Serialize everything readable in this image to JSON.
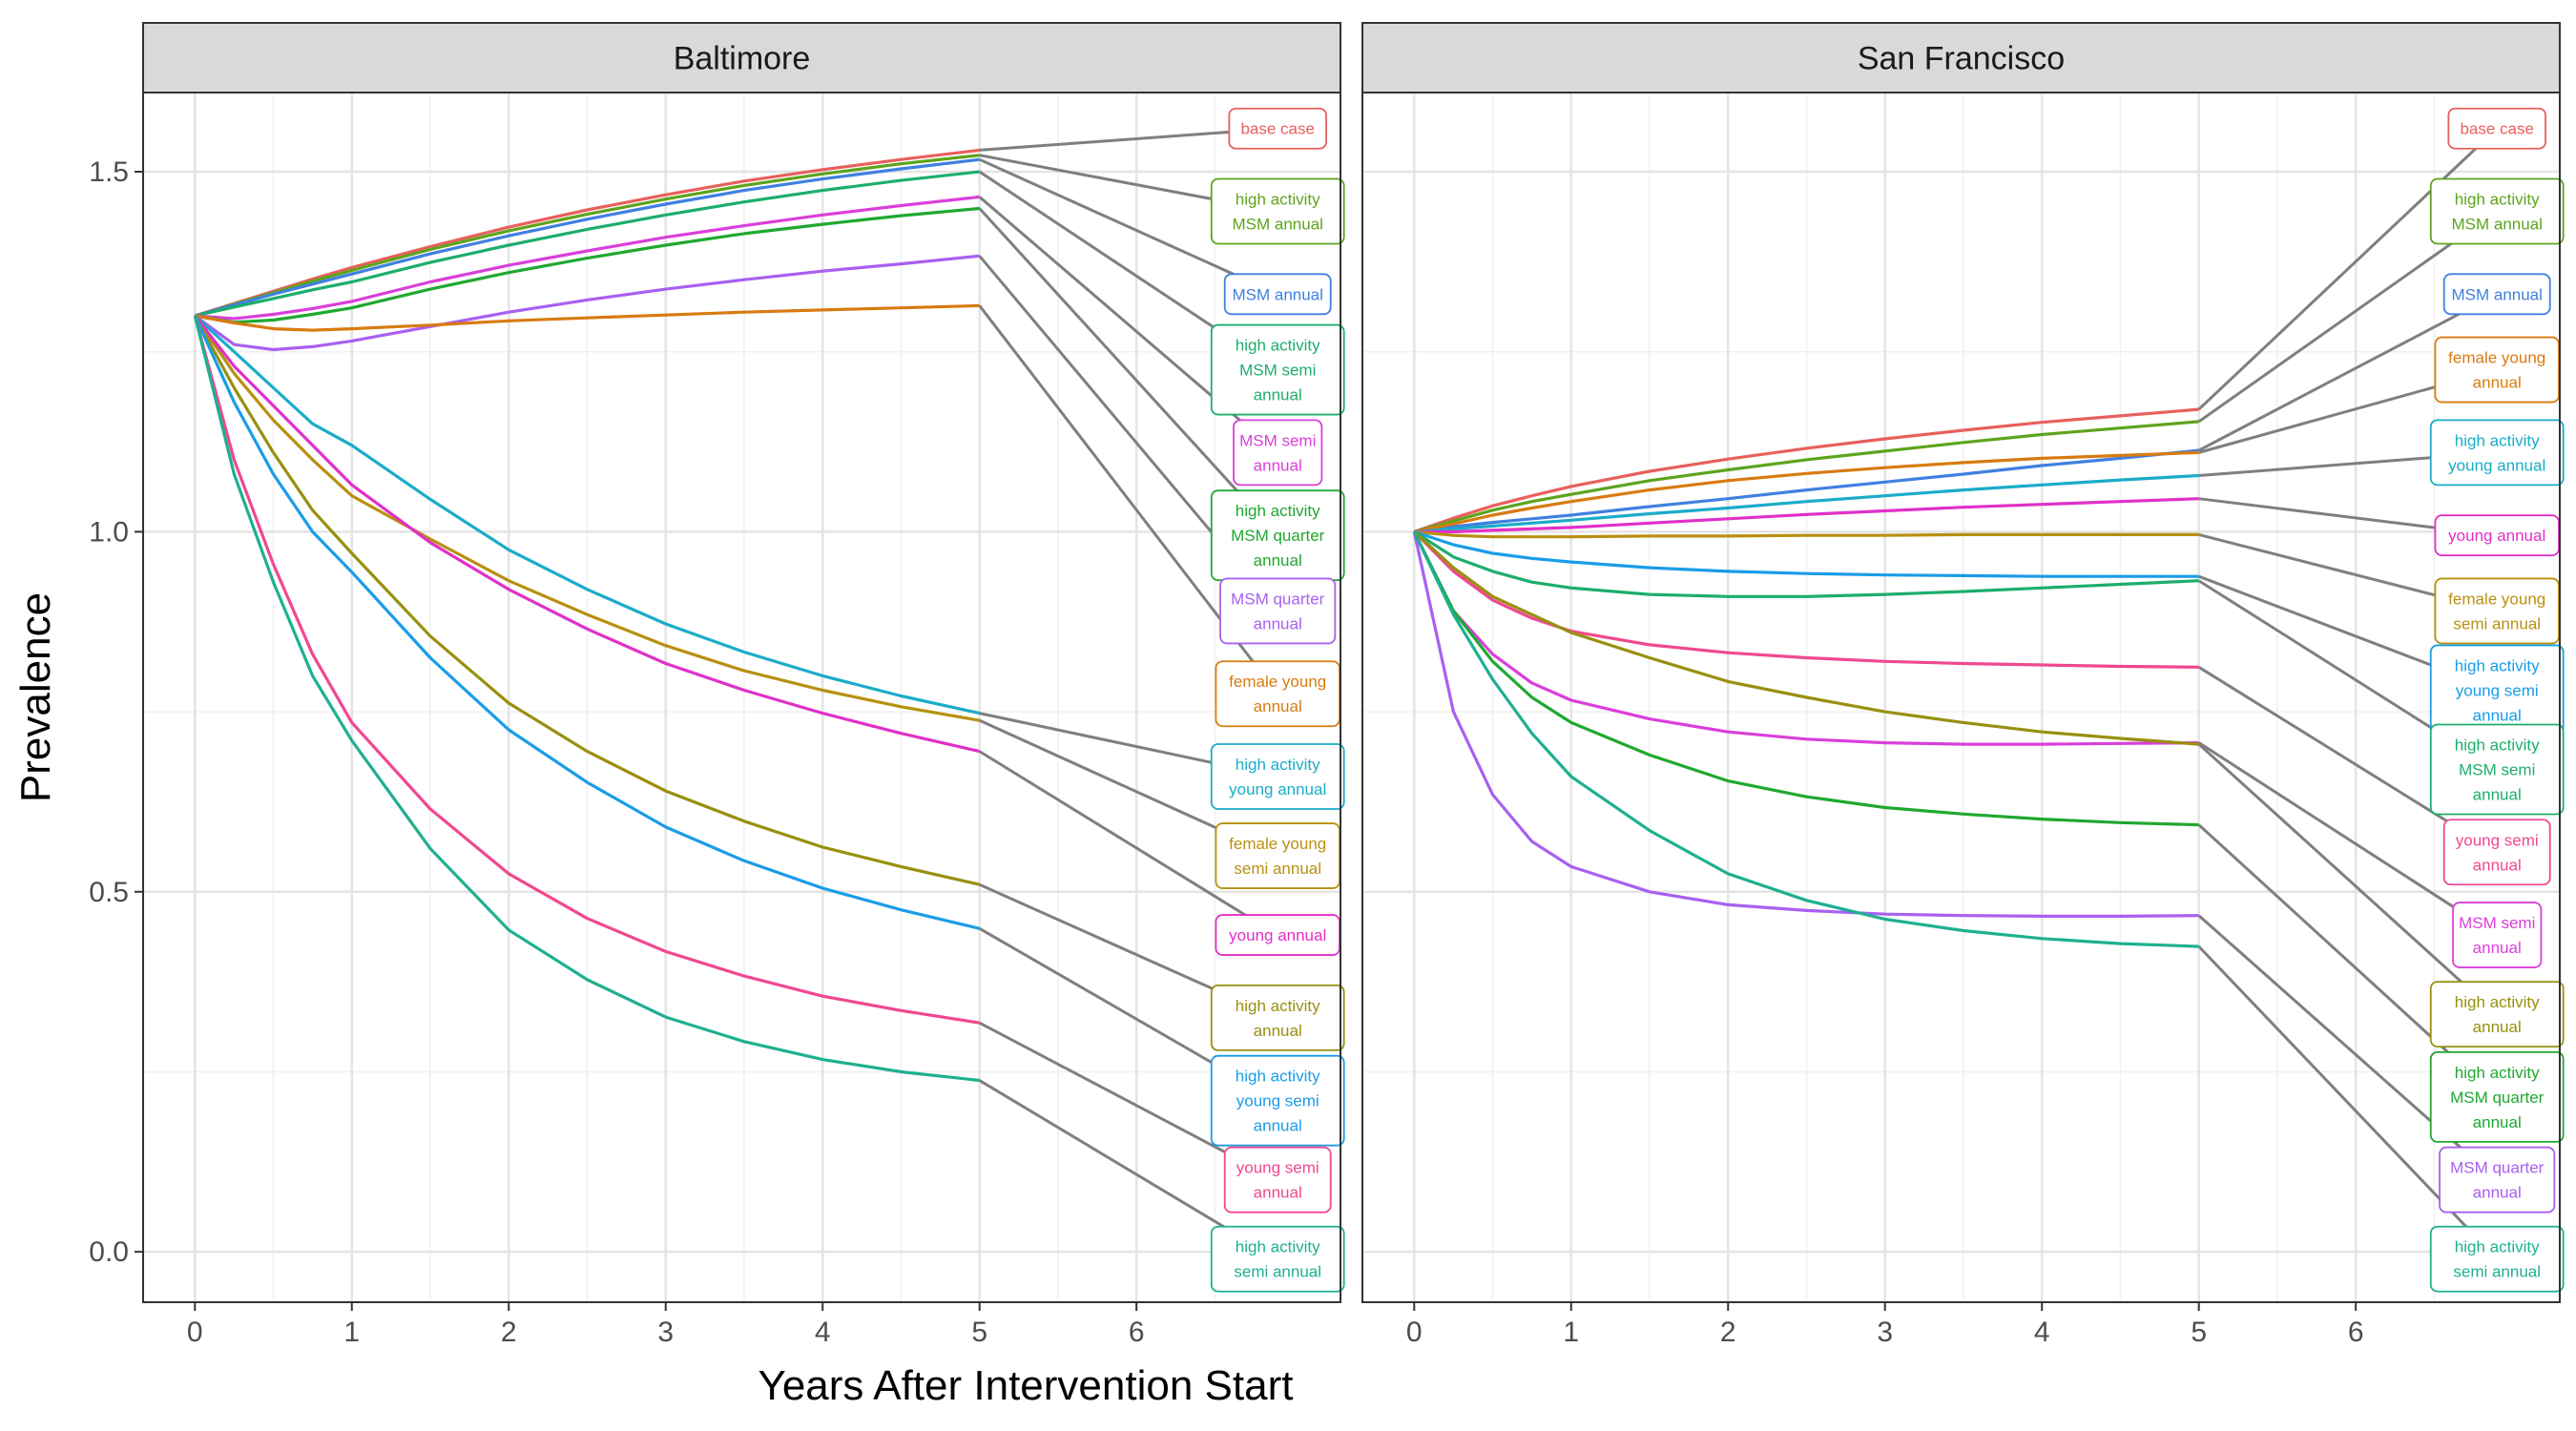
{
  "chart_data": {
    "type": "line",
    "xlabel": "Years After Intervention Start",
    "ylabel": "Prevalence",
    "xlim": [
      -0.33,
      7.3
    ],
    "ylim": [
      -0.07,
      1.61
    ],
    "x_ticks": [
      0,
      1,
      2,
      3,
      4,
      5,
      6
    ],
    "y_ticks": [
      0.0,
      0.5,
      1.0,
      1.5
    ],
    "y_tick_labels": [
      "0.0",
      "0.5",
      "1.0",
      "1.5"
    ],
    "grid": true,
    "x": [
      0,
      0.25,
      0.5,
      0.75,
      1,
      1.5,
      2,
      2.5,
      3,
      3.5,
      4,
      4.5,
      5
    ],
    "panels": [
      {
        "name": "Baltimore",
        "series": [
          {
            "name": "base case",
            "color": "#E8605C",
            "label_y": 1.56,
            "values": [
              1.3,
              1.317,
              1.334,
              1.351,
              1.367,
              1.396,
              1.423,
              1.447,
              1.468,
              1.487,
              1.503,
              1.517,
              1.53
            ]
          },
          {
            "name": "high activity MSM annual",
            "color": "#5DA41D",
            "label_y": 1.445,
            "values": [
              1.3,
              1.316,
              1.332,
              1.348,
              1.363,
              1.392,
              1.418,
              1.441,
              1.462,
              1.481,
              1.497,
              1.511,
              1.523
            ]
          },
          {
            "name": "MSM annual",
            "color": "#4080E0",
            "label_y": 1.33,
            "values": [
              1.3,
              1.315,
              1.33,
              1.344,
              1.358,
              1.386,
              1.411,
              1.434,
              1.455,
              1.474,
              1.49,
              1.504,
              1.517
            ]
          },
          {
            "name": "high activity MSM semi annual",
            "color": "#1CAE6C",
            "label_y": 1.225,
            "values": [
              1.3,
              1.312,
              1.324,
              1.336,
              1.347,
              1.374,
              1.398,
              1.42,
              1.44,
              1.458,
              1.474,
              1.488,
              1.5
            ]
          },
          {
            "name": "MSM semi annual",
            "color": "#DA3FDA",
            "label_y": 1.11,
            "values": [
              1.3,
              1.296,
              1.302,
              1.31,
              1.32,
              1.347,
              1.37,
              1.39,
              1.409,
              1.425,
              1.44,
              1.453,
              1.465
            ]
          },
          {
            "name": "high activity MSM quarter annual",
            "color": "#20A830",
            "label_y": 0.995,
            "values": [
              1.3,
              1.291,
              1.294,
              1.302,
              1.311,
              1.337,
              1.36,
              1.38,
              1.398,
              1.414,
              1.427,
              1.439,
              1.449
            ]
          },
          {
            "name": "MSM quarter annual",
            "color": "#A860F0",
            "label_y": 0.89,
            "values": [
              1.3,
              1.26,
              1.253,
              1.257,
              1.265,
              1.285,
              1.305,
              1.322,
              1.337,
              1.35,
              1.362,
              1.372,
              1.383
            ]
          },
          {
            "name": "female young annual",
            "color": "#D87B10",
            "label_y": 0.775,
            "values": [
              1.3,
              1.29,
              1.282,
              1.28,
              1.282,
              1.287,
              1.293,
              1.297,
              1.301,
              1.305,
              1.308,
              1.311,
              1.314
            ]
          },
          {
            "name": "high activity young annual",
            "color": "#1AACC8",
            "label_y": 0.66,
            "values": [
              1.3,
              1.25,
              1.2,
              1.15,
              1.12,
              1.045,
              0.975,
              0.92,
              0.872,
              0.833,
              0.8,
              0.772,
              0.748
            ]
          },
          {
            "name": "female young semi annual",
            "color": "#B89010",
            "label_y": 0.55,
            "values": [
              1.3,
              1.22,
              1.155,
              1.1,
              1.05,
              0.99,
              0.932,
              0.885,
              0.842,
              0.807,
              0.78,
              0.757,
              0.738
            ]
          },
          {
            "name": "young annual",
            "color": "#E030C8",
            "label_y": 0.44,
            "values": [
              1.3,
              1.23,
              1.175,
              1.12,
              1.065,
              0.985,
              0.92,
              0.865,
              0.817,
              0.78,
              0.748,
              0.72,
              0.695
            ]
          },
          {
            "name": "high activity annual",
            "color": "#989010",
            "label_y": 0.325,
            "values": [
              1.3,
              1.2,
              1.11,
              1.03,
              0.97,
              0.855,
              0.762,
              0.695,
              0.64,
              0.598,
              0.562,
              0.535,
              0.51
            ]
          },
          {
            "name": "high activity young semi annual",
            "color": "#1A9CE8",
            "label_y": 0.21,
            "values": [
              1.3,
              1.18,
              1.08,
              1.0,
              0.944,
              0.825,
              0.725,
              0.652,
              0.59,
              0.543,
              0.505,
              0.475,
              0.449
            ]
          },
          {
            "name": "young semi annual",
            "color": "#F04890",
            "label_y": 0.1,
            "values": [
              1.3,
              1.1,
              0.955,
              0.83,
              0.735,
              0.615,
              0.525,
              0.463,
              0.417,
              0.383,
              0.355,
              0.335,
              0.318
            ]
          },
          {
            "name": "high activity semi annual",
            "color": "#1EB090",
            "label_y": -0.01,
            "values": [
              1.3,
              1.08,
              0.93,
              0.8,
              0.71,
              0.56,
              0.447,
              0.378,
              0.326,
              0.292,
              0.267,
              0.25,
              0.238
            ]
          }
        ]
      },
      {
        "name": "San Francisco",
        "series": [
          {
            "name": "base case",
            "color": "#E8605C",
            "label_y": 1.56,
            "values": [
              1.0,
              1.019,
              1.036,
              1.05,
              1.063,
              1.084,
              1.101,
              1.116,
              1.129,
              1.141,
              1.152,
              1.161,
              1.17
            ]
          },
          {
            "name": "high activity MSM annual",
            "color": "#5DA41D",
            "label_y": 1.445,
            "values": [
              1.0,
              1.015,
              1.03,
              1.042,
              1.052,
              1.071,
              1.086,
              1.1,
              1.112,
              1.124,
              1.135,
              1.144,
              1.153
            ]
          },
          {
            "name": "MSM annual",
            "color": "#4080E0",
            "label_y": 1.33,
            "values": [
              1.0,
              1.007,
              1.013,
              1.018,
              1.023,
              1.035,
              1.046,
              1.058,
              1.069,
              1.08,
              1.092,
              1.102,
              1.113
            ]
          },
          {
            "name": "female young annual",
            "color": "#D87B10",
            "label_y": 1.225,
            "values": [
              1.0,
              1.011,
              1.023,
              1.033,
              1.042,
              1.058,
              1.071,
              1.081,
              1.089,
              1.096,
              1.102,
              1.106,
              1.11
            ]
          },
          {
            "name": "high activity young annual",
            "color": "#1AACC8",
            "label_y": 1.11,
            "values": [
              1.0,
              1.004,
              1.008,
              1.012,
              1.016,
              1.025,
              1.033,
              1.042,
              1.05,
              1.058,
              1.065,
              1.072,
              1.078
            ]
          },
          {
            "name": "young annual",
            "color": "#E030C8",
            "label_y": 0.995,
            "values": [
              1.0,
              1.0,
              1.002,
              1.004,
              1.006,
              1.012,
              1.018,
              1.024,
              1.029,
              1.034,
              1.038,
              1.042,
              1.046
            ]
          },
          {
            "name": "female young semi annual",
            "color": "#B89010",
            "label_y": 0.89,
            "values": [
              1.0,
              0.995,
              0.993,
              0.993,
              0.993,
              0.994,
              0.994,
              0.995,
              0.995,
              0.996,
              0.996,
              0.996,
              0.996
            ]
          },
          {
            "name": "high activity young semi annual",
            "color": "#1A9CE8",
            "label_y": 0.78,
            "values": [
              1.0,
              0.982,
              0.97,
              0.963,
              0.958,
              0.95,
              0.945,
              0.942,
              0.94,
              0.939,
              0.938,
              0.938,
              0.938
            ]
          },
          {
            "name": "high activity MSM semi annual",
            "color": "#1CAE6C",
            "label_y": 0.67,
            "values": [
              1.0,
              0.965,
              0.945,
              0.93,
              0.922,
              0.913,
              0.91,
              0.91,
              0.913,
              0.917,
              0.922,
              0.927,
              0.932
            ]
          },
          {
            "name": "young semi annual",
            "color": "#F04890",
            "label_y": 0.555,
            "values": [
              1.0,
              0.945,
              0.905,
              0.88,
              0.862,
              0.843,
              0.832,
              0.825,
              0.82,
              0.817,
              0.815,
              0.813,
              0.812
            ]
          },
          {
            "name": "MSM semi annual",
            "color": "#DA3FDA",
            "label_y": 0.44,
            "values": [
              1.0,
              0.89,
              0.83,
              0.79,
              0.766,
              0.74,
              0.722,
              0.712,
              0.707,
              0.705,
              0.705,
              0.706,
              0.707
            ]
          },
          {
            "name": "high activity annual",
            "color": "#989010",
            "label_y": 0.33,
            "values": [
              1.0,
              0.95,
              0.91,
              0.885,
              0.86,
              0.825,
              0.792,
              0.77,
              0.75,
              0.735,
              0.722,
              0.713,
              0.705
            ]
          },
          {
            "name": "high activity MSM quarter annual",
            "color": "#20A830",
            "label_y": 0.215,
            "values": [
              1.0,
              0.89,
              0.82,
              0.77,
              0.735,
              0.69,
              0.654,
              0.632,
              0.617,
              0.608,
              0.601,
              0.596,
              0.593
            ]
          },
          {
            "name": "MSM quarter annual",
            "color": "#A860F0",
            "label_y": 0.1,
            "values": [
              1.0,
              0.75,
              0.635,
              0.57,
              0.535,
              0.5,
              0.482,
              0.474,
              0.469,
              0.467,
              0.466,
              0.466,
              0.467
            ]
          },
          {
            "name": "high activity semi annual",
            "color": "#1EB090",
            "label_y": -0.01,
            "values": [
              1.0,
              0.885,
              0.795,
              0.72,
              0.66,
              0.585,
              0.525,
              0.488,
              0.462,
              0.446,
              0.435,
              0.428,
              0.424
            ]
          }
        ]
      }
    ]
  }
}
